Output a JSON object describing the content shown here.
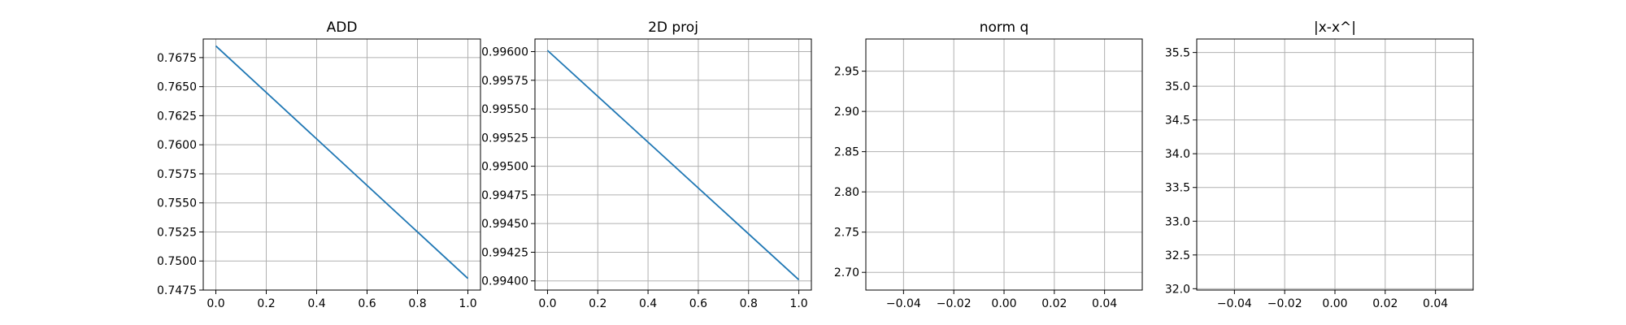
{
  "chart_data": [
    {
      "type": "line",
      "title": "ADD",
      "xlabel": "",
      "ylabel": "",
      "xlim": [
        -0.05,
        1.05
      ],
      "ylim": [
        0.7475,
        0.7691
      ],
      "xticks": [
        0.0,
        0.2,
        0.4,
        0.6,
        0.8,
        1.0
      ],
      "xtick_labels": [
        "0.0",
        "0.2",
        "0.4",
        "0.6",
        "0.8",
        "1.0"
      ],
      "yticks": [
        0.7475,
        0.75,
        0.7525,
        0.755,
        0.7575,
        0.76,
        0.7625,
        0.765,
        0.7675
      ],
      "ytick_labels": [
        "0.7475",
        "0.7500",
        "0.7525",
        "0.7550",
        "0.7575",
        "0.7600",
        "0.7625",
        "0.7650",
        "0.7675"
      ],
      "grid": true,
      "series": [
        {
          "color": "#1f77b4",
          "x": [
            0.0,
            1.0
          ],
          "y": [
            0.7685,
            0.7485
          ]
        }
      ]
    },
    {
      "type": "line",
      "title": "2D proj",
      "xlabel": "",
      "ylabel": "",
      "xlim": [
        -0.05,
        1.05
      ],
      "ylim": [
        0.99392,
        0.99611
      ],
      "xticks": [
        0.0,
        0.2,
        0.4,
        0.6,
        0.8,
        1.0
      ],
      "xtick_labels": [
        "0.0",
        "0.2",
        "0.4",
        "0.6",
        "0.8",
        "1.0"
      ],
      "yticks": [
        0.994,
        0.99425,
        0.9945,
        0.99475,
        0.995,
        0.99525,
        0.9955,
        0.99575,
        0.996
      ],
      "ytick_labels": [
        "0.99400",
        "0.99425",
        "0.99450",
        "0.99475",
        "0.99500",
        "0.99525",
        "0.99550",
        "0.99575",
        "0.99600"
      ],
      "grid": true,
      "series": [
        {
          "color": "#1f77b4",
          "x": [
            0.0,
            1.0
          ],
          "y": [
            0.99601,
            0.99401
          ]
        }
      ]
    },
    {
      "type": "line",
      "title": "norm q",
      "xlabel": "",
      "ylabel": "",
      "xlim": [
        -0.055,
        0.055
      ],
      "ylim": [
        2.678,
        2.99
      ],
      "xticks": [
        -0.04,
        -0.02,
        0.0,
        0.02,
        0.04
      ],
      "xtick_labels": [
        "−0.04",
        "−0.02",
        "0.00",
        "0.02",
        "0.04"
      ],
      "yticks": [
        2.7,
        2.75,
        2.8,
        2.85,
        2.9,
        2.95
      ],
      "ytick_labels": [
        "2.70",
        "2.75",
        "2.80",
        "2.85",
        "2.90",
        "2.95"
      ],
      "grid": true,
      "series": []
    },
    {
      "type": "line",
      "title": "|x-x^|",
      "xlabel": "",
      "ylabel": "",
      "xlim": [
        -0.055,
        0.055
      ],
      "ylim": [
        31.98,
        35.7
      ],
      "xticks": [
        -0.04,
        -0.02,
        0.0,
        0.02,
        0.04
      ],
      "xtick_labels": [
        "−0.04",
        "−0.02",
        "0.00",
        "0.02",
        "0.04"
      ],
      "yticks": [
        32.0,
        32.5,
        33.0,
        33.5,
        34.0,
        34.5,
        35.0,
        35.5
      ],
      "ytick_labels": [
        "32.0",
        "32.5",
        "33.0",
        "33.5",
        "34.0",
        "34.5",
        "35.0",
        "35.5"
      ],
      "grid": true,
      "series": []
    }
  ]
}
